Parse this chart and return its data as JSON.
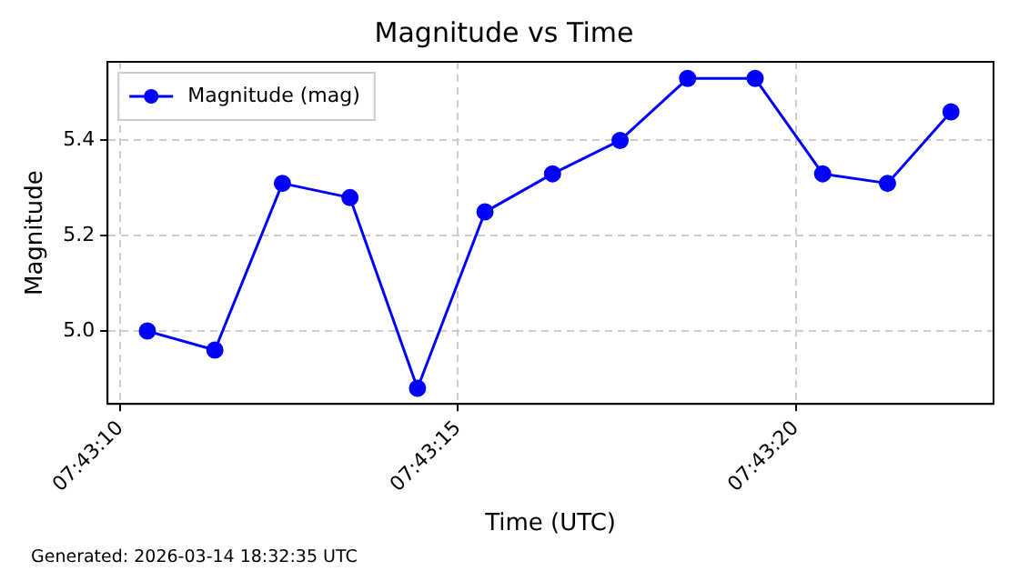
{
  "chart_data": {
    "type": "line",
    "title": "Magnitude vs Time",
    "xlabel": "Time (UTC)",
    "ylabel": "Magnitude",
    "x": [
      7.7195556,
      7.7198333,
      7.7201111,
      7.7203889,
      7.7206667,
      7.7209444,
      7.7212222,
      7.7215,
      7.7217778,
      7.7220556,
      7.7223333,
      7.7226,
      7.7228611
    ],
    "series": [
      {
        "name": "Magnitude (mag)",
        "color": "#0000ff",
        "values": [
          5.0,
          4.96,
          5.31,
          5.28,
          4.88,
          5.25,
          5.33,
          5.4,
          5.53,
          5.53,
          5.33,
          5.31,
          5.46
        ]
      }
    ],
    "xlim": [
      7.7193917,
      7.7230361
    ],
    "xticks": [
      {
        "value": 7.7194444,
        "label": "07:43:10"
      },
      {
        "value": 7.7208333,
        "label": "07:43:15"
      },
      {
        "value": 7.7222222,
        "label": "07:43:20"
      }
    ],
    "ylim": [
      4.847,
      5.565
    ],
    "yticks": [
      {
        "value": 5.0,
        "label": "5.0"
      },
      {
        "value": 5.2,
        "label": "5.2"
      },
      {
        "value": 5.4,
        "label": "5.4"
      }
    ],
    "grid": true,
    "legend": "top left",
    "marker": "circle",
    "line_style": "solid",
    "annotations": [
      "Generated: 2026-03-14 18:32:35 UTC"
    ]
  }
}
